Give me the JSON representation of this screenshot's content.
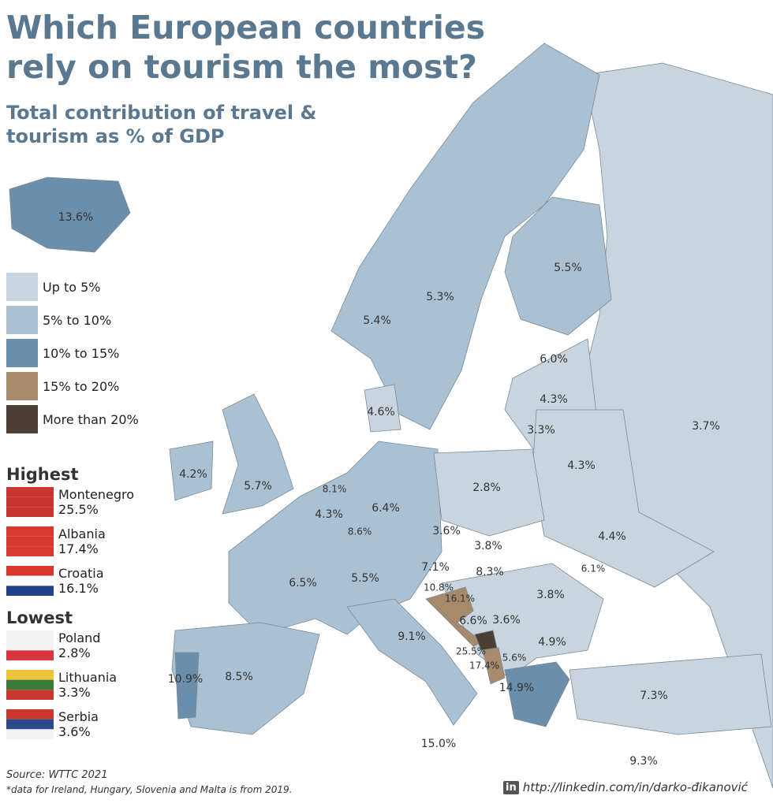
{
  "header": {
    "title": "Which European countries rely on tourism the most?",
    "subtitle": "Total contribution of travel & tourism as % of GDP"
  },
  "legend": [
    {
      "label": "Up to 5%",
      "color": "#c9d5de"
    },
    {
      "label": "5% to 10%",
      "color": "#a9c1d3"
    },
    {
      "label": "10% to 15%",
      "color": "#6b8eab"
    },
    {
      "label": "15% to 20%",
      "color": "#a68a6b"
    },
    {
      "label": "More than 20%",
      "color": "#4a3f32"
    }
  ],
  "highest": {
    "heading": "Highest",
    "items": [
      {
        "country": "Montenegro",
        "value": "25.5%"
      },
      {
        "country": "Albania",
        "value": "17.4%"
      },
      {
        "country": "Croatia",
        "value": "16.1%"
      }
    ]
  },
  "lowest": {
    "heading": "Lowest",
    "items": [
      {
        "country": "Poland",
        "value": "2.8%"
      },
      {
        "country": "Lithuania",
        "value": "3.3%"
      },
      {
        "country": "Serbia",
        "value": "3.6%"
      }
    ]
  },
  "map_labels": [
    "13.6%",
    "5.5%",
    "5.3%",
    "5.4%",
    "6.0%",
    "4.6%",
    "4.3%",
    "3.3%",
    "3.7%",
    "4.3%",
    "4.2%",
    "5.7%",
    "8.1%",
    "2.8%",
    "6.4%",
    "4.3%",
    "8.6%",
    "3.6%",
    "4.4%",
    "3.8%",
    "7.1%",
    "8.3%",
    "6.1%",
    "6.5%",
    "5.5%",
    "10.8%",
    "16.1%",
    "3.8%",
    "6.6%",
    "3.6%",
    "9.1%",
    "4.9%",
    "25.5%",
    "5.6%",
    "17.4%",
    "10.9%",
    "8.5%",
    "14.9%",
    "7.3%",
    "15.0%",
    "9.3%"
  ],
  "footer": {
    "source": "Source: WTTC 2021",
    "note": "*data for Ireland, Hungary, Slovenia and Malta is from 2019.",
    "link_icon": "in",
    "link": "http://linkedin.com/in/darko-đikanović"
  }
}
